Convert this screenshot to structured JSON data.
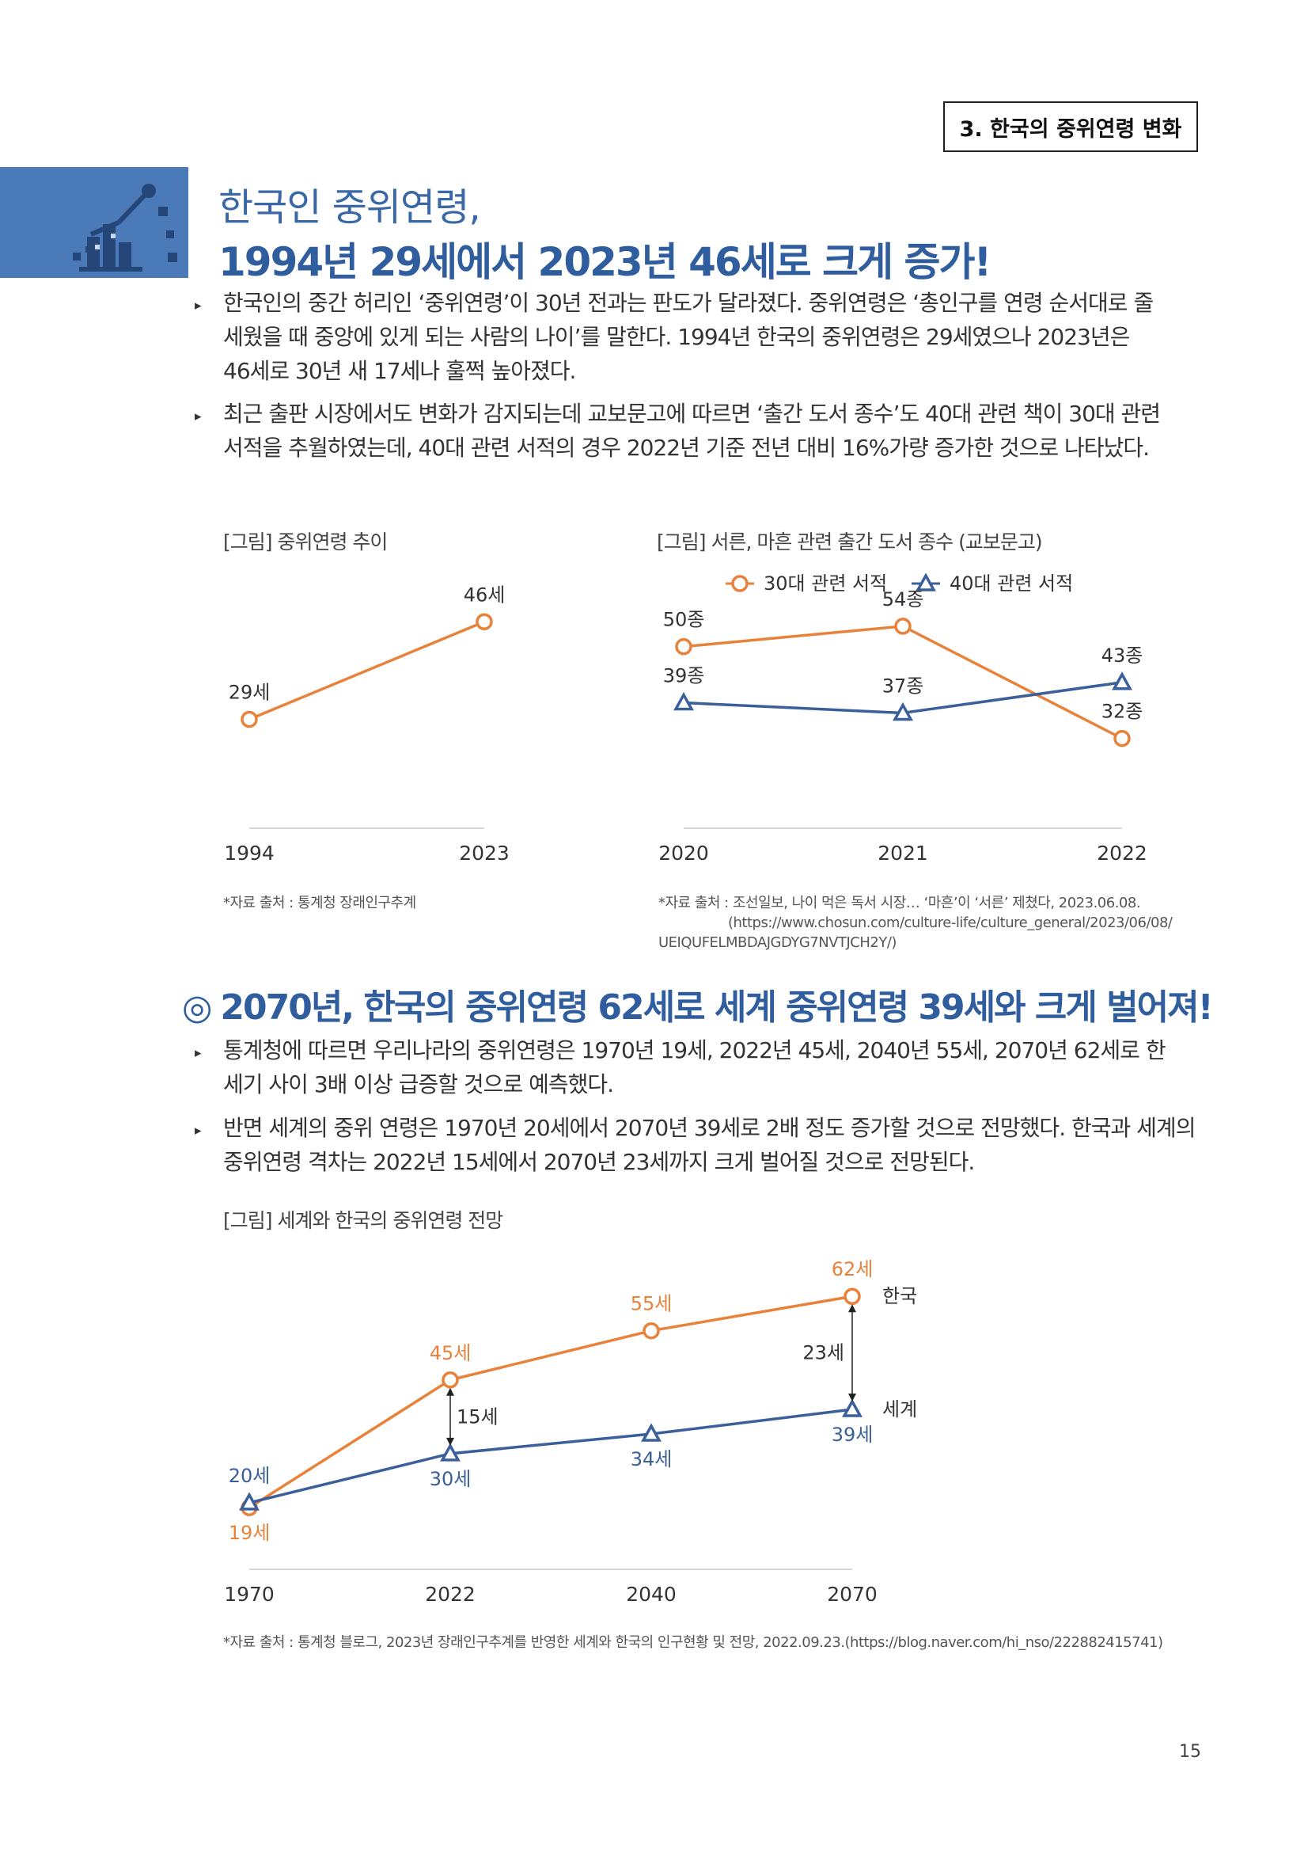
{
  "header": {
    "section_label": "3. 한국의 중위연령 변화"
  },
  "hero": {
    "subtitle": "한국인 중위연령,",
    "title": "1994년 29세에서 2023년 46세로 크게 증가!",
    "icon": "chart-podium-icon",
    "band_color": "#4a7ab8"
  },
  "section1": {
    "paragraphs": [
      "한국인의 중간 허리인 ‘중위연령’이 30년 전과는 판도가 달라졌다. 중위연령은 ‘총인구를 연령 순서대로 줄 세웠을 때 중앙에 있게 되는 사람의 나이’를 말한다. 1994년 한국의 중위연령은 29세였으나 2023년은 46세로 30년 새 17세나 훌쩍 높아졌다.",
      "최근 출판 시장에서도 변화가 감지되는데 교보문고에 따르면 ‘출간 도서 종수’도 40대 관련 책이 30대 관련 서적을 추월하였는데, 40대 관련 서적의 경우 2022년 기준 전년 대비 16%가량 증가한 것으로 나타났다."
    ]
  },
  "fig1": {
    "caption": "[그림] 중위연령 추이",
    "source": "*자료 출처 : 통계청 장래인구추계"
  },
  "fig2": {
    "caption": "[그림] 서른, 마흔 관련 출간 도서 종수 (교보문고)",
    "source_lines": [
      "*자료 출처 : 조선일보, 나이 먹은 독서 시장… ‘마흔’이 ‘서른’ 제쳤다, 2023.06.08.",
      "(https://www.chosun.com/culture-life/culture_general/2023/06/08/",
      "UEIQUFELMBDAJGDYG7NVTJCH2Y/)"
    ]
  },
  "section2": {
    "mark": "◎",
    "title": "2070년, 한국의 중위연령 62세로 세계 중위연령 39세와 크게 벌어져!",
    "paragraphs": [
      "통계청에 따르면 우리나라의 중위연령은 1970년 19세, 2022년 45세, 2040년 55세, 2070년 62세로 한 세기 사이 3배 이상 급증할 것으로 예측했다.",
      "반면 세계의 중위 연령은 1970년 20세에서 2070년 39세로 2배 정도 증가할 것으로 전망했다. 한국과 세계의 중위연령 격차는 2022년 15세에서 2070년 23세까지 크게 벌어질 것으로 전망된다."
    ]
  },
  "fig3": {
    "caption": "[그림] 세계와 한국의 중위연령 전망",
    "source": "*자료 출처 : 통계청 블로그, 2023년 장래인구추계를 반영한 세계와 한국의 인구현황 및 전망, 2022.09.23.(https://blog.naver.com/hi_nso/222882415741)"
  },
  "page_number": "15",
  "colors": {
    "orange": "#e8823a",
    "blue": "#3b5f9a",
    "axis": "#cccccc"
  },
  "chart_data": [
    {
      "type": "line",
      "categories": [
        "1994",
        "2023"
      ],
      "series": [
        {
          "name": "",
          "values": [
            29,
            46
          ],
          "labels": [
            "29세",
            "46세"
          ],
          "marker": "circle",
          "color": "#e8823a"
        }
      ],
      "ylim": [
        15,
        55
      ],
      "grid": false
    },
    {
      "type": "line",
      "categories": [
        "2020",
        "2021",
        "2022"
      ],
      "series": [
        {
          "name": "30대 관련 서적",
          "values": [
            50,
            54,
            32
          ],
          "labels": [
            "50종",
            "54종",
            "32종"
          ],
          "marker": "circle",
          "color": "#e8823a"
        },
        {
          "name": "40대 관련 서적",
          "values": [
            39,
            37,
            43
          ],
          "labels": [
            "39종",
            "37종",
            "43종"
          ],
          "marker": "triangle",
          "color": "#3b5f9a"
        }
      ],
      "legend": "top",
      "ylim": [
        20,
        65
      ],
      "grid": false
    },
    {
      "type": "line",
      "categories": [
        "1970",
        "2022",
        "2040",
        "2070"
      ],
      "series": [
        {
          "name": "한국",
          "values": [
            19,
            45,
            55,
            62
          ],
          "labels": [
            "19세",
            "45세",
            "55세",
            "62세"
          ],
          "marker": "circle",
          "color": "#e8823a"
        },
        {
          "name": "세계",
          "values": [
            20,
            30,
            34,
            39
          ],
          "labels": [
            "20세",
            "30세",
            "34세",
            "39세"
          ],
          "marker": "triangle",
          "color": "#3b5f9a"
        }
      ],
      "annotations": [
        {
          "category": "2022",
          "text": "15세"
        },
        {
          "category": "2070",
          "text": "23세"
        }
      ],
      "legend": "right",
      "ylim": [
        10,
        68
      ],
      "grid": false
    }
  ]
}
